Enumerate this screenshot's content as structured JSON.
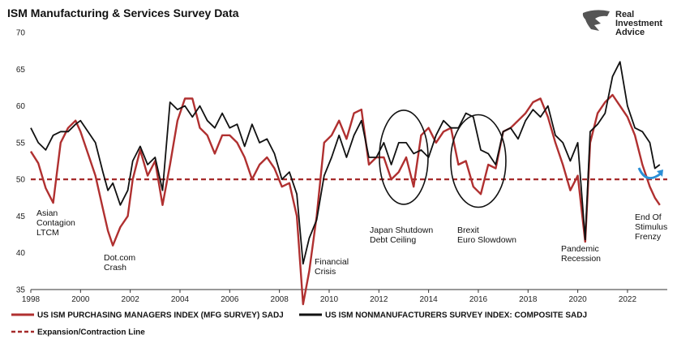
{
  "brand": {
    "lines": [
      "Real",
      "Investment",
      "Advice"
    ]
  },
  "chart_data": {
    "type": "line",
    "title": "ISM Manufacturing & Services Survey Data",
    "xlabel": "",
    "ylabel": "",
    "xlim": [
      1998,
      2023.6
    ],
    "ylim": [
      35,
      70
    ],
    "x_ticks": [
      1998,
      2000,
      2002,
      2004,
      2006,
      2008,
      2010,
      2012,
      2014,
      2016,
      2018,
      2020,
      2022
    ],
    "y_ticks": [
      35,
      40,
      45,
      50,
      55,
      60,
      65,
      70
    ],
    "grid": false,
    "legend_position": "bottom-left",
    "reference_line": {
      "name": "Expansion/Contraction Line",
      "value": 50,
      "color": "#a52a2a",
      "style": "dashed"
    },
    "series": [
      {
        "name": "US ISM PURCHASING MANAGERS INDEX (MFG SURVEY) SADJ",
        "color": "#b03030",
        "x": [
          1998.0,
          1998.3,
          1998.6,
          1998.9,
          1999.2,
          1999.5,
          1999.8,
          2000.0,
          2000.3,
          2000.6,
          2000.9,
          2001.1,
          2001.3,
          2001.6,
          2001.9,
          2002.1,
          2002.4,
          2002.7,
          2003.0,
          2003.3,
          2003.6,
          2003.9,
          2004.2,
          2004.5,
          2004.8,
          2005.1,
          2005.4,
          2005.7,
          2006.0,
          2006.3,
          2006.6,
          2006.9,
          2007.2,
          2007.5,
          2007.8,
          2008.1,
          2008.4,
          2008.7,
          2008.95,
          2009.2,
          2009.5,
          2009.8,
          2010.1,
          2010.4,
          2010.7,
          2011.0,
          2011.3,
          2011.6,
          2011.9,
          2012.2,
          2012.5,
          2012.8,
          2013.1,
          2013.4,
          2013.7,
          2014.0,
          2014.3,
          2014.6,
          2014.9,
          2015.2,
          2015.5,
          2015.8,
          2016.1,
          2016.4,
          2016.7,
          2017.0,
          2017.3,
          2017.6,
          2017.9,
          2018.2,
          2018.5,
          2018.8,
          2019.1,
          2019.4,
          2019.7,
          2020.0,
          2020.3,
          2020.5,
          2020.8,
          2021.1,
          2021.4,
          2021.7,
          2022.0,
          2022.3,
          2022.6,
          2022.9,
          2023.1,
          2023.3
        ],
        "values": [
          53.8,
          52.2,
          48.8,
          46.8,
          55.0,
          57.0,
          58.0,
          56.5,
          53.5,
          50.5,
          46.0,
          43.0,
          41.0,
          43.5,
          45.0,
          50.0,
          54.0,
          50.5,
          52.5,
          46.5,
          52.0,
          58.0,
          61.0,
          61.0,
          57.0,
          56.0,
          53.5,
          56.0,
          56.0,
          55.0,
          53.0,
          50.0,
          52.0,
          53.0,
          51.5,
          49.0,
          49.5,
          45.0,
          33.0,
          37.5,
          45.0,
          55.0,
          56.0,
          58.0,
          55.5,
          59.0,
          59.5,
          52.0,
          53.0,
          53.0,
          50.0,
          51.0,
          53.0,
          49.0,
          56.0,
          57.0,
          55.0,
          56.5,
          57.0,
          52.0,
          52.5,
          49.0,
          48.0,
          52.0,
          51.5,
          56.5,
          57.0,
          58.0,
          59.0,
          60.5,
          61.0,
          58.5,
          55.0,
          52.0,
          48.5,
          50.5,
          41.5,
          55.0,
          59.0,
          60.5,
          61.5,
          60.0,
          58.5,
          56.0,
          52.0,
          49.0,
          47.5,
          46.5
        ]
      },
      {
        "name": "US ISM NONMANUFACTURERS SURVEY INDEX: COMPOSITE SADJ",
        "color": "#111111",
        "x": [
          1998.0,
          1998.3,
          1998.6,
          1998.9,
          1999.2,
          1999.5,
          1999.8,
          2000.0,
          2000.3,
          2000.6,
          2000.9,
          2001.1,
          2001.3,
          2001.6,
          2001.9,
          2002.1,
          2002.4,
          2002.7,
          2003.0,
          2003.3,
          2003.6,
          2003.9,
          2004.2,
          2004.5,
          2004.8,
          2005.1,
          2005.4,
          2005.7,
          2006.0,
          2006.3,
          2006.6,
          2006.9,
          2007.2,
          2007.5,
          2007.8,
          2008.1,
          2008.4,
          2008.7,
          2008.95,
          2009.2,
          2009.5,
          2009.8,
          2010.1,
          2010.4,
          2010.7,
          2011.0,
          2011.3,
          2011.6,
          2011.9,
          2012.2,
          2012.5,
          2012.8,
          2013.1,
          2013.4,
          2013.7,
          2014.0,
          2014.3,
          2014.6,
          2014.9,
          2015.2,
          2015.5,
          2015.8,
          2016.1,
          2016.4,
          2016.7,
          2017.0,
          2017.3,
          2017.6,
          2017.9,
          2018.2,
          2018.5,
          2018.8,
          2019.1,
          2019.4,
          2019.7,
          2020.0,
          2020.3,
          2020.5,
          2020.8,
          2021.1,
          2021.4,
          2021.7,
          2022.0,
          2022.3,
          2022.6,
          2022.9,
          2023.1,
          2023.3
        ],
        "values": [
          57.0,
          55.0,
          54.0,
          56.0,
          56.5,
          56.5,
          57.5,
          58.0,
          56.5,
          55.0,
          51.0,
          48.5,
          49.5,
          46.5,
          48.5,
          52.5,
          54.5,
          52.0,
          53.0,
          48.5,
          60.5,
          59.5,
          60.0,
          58.5,
          60.0,
          58.0,
          57.0,
          59.0,
          57.0,
          57.5,
          54.5,
          57.5,
          55.0,
          55.5,
          53.5,
          50.0,
          51.0,
          48.0,
          38.5,
          42.0,
          44.5,
          50.5,
          53.0,
          56.0,
          53.0,
          56.0,
          58.0,
          53.0,
          53.0,
          55.0,
          52.0,
          55.0,
          55.0,
          53.5,
          54.0,
          53.0,
          56.0,
          58.0,
          57.0,
          57.0,
          59.0,
          58.5,
          54.0,
          53.5,
          52.0,
          56.5,
          57.0,
          55.5,
          58.0,
          59.5,
          58.5,
          60.0,
          56.0,
          55.0,
          52.5,
          55.0,
          41.8,
          56.5,
          57.5,
          59.0,
          64.0,
          66.0,
          60.0,
          57.0,
          56.5,
          55.0,
          51.5,
          52.0
        ]
      }
    ],
    "annotations": [
      {
        "lines": [
          "Asian",
          "Contagion",
          "LTCM"
        ]
      },
      {
        "lines": [
          "Dot.com",
          "Crash"
        ]
      },
      {
        "lines": [
          "Financial",
          "Crisis"
        ]
      },
      {
        "lines": [
          "Japan Shutdown",
          "Debt Ceiling"
        ]
      },
      {
        "lines": [
          "Brexit",
          "Euro Slowdown"
        ]
      },
      {
        "lines": [
          "Pandemic",
          "Recession"
        ]
      },
      {
        "lines": [
          "End Of",
          "Stimulus",
          "Frenzy"
        ]
      }
    ]
  }
}
